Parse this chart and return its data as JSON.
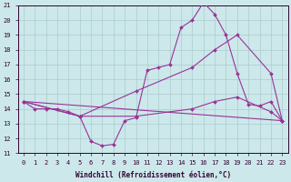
{
  "xlabel": "Windchill (Refroidissement éolien,°C)",
  "bg_color": "#cce8ea",
  "grid_color": "#aacccc",
  "line_color": "#993399",
  "xlim": [
    -0.5,
    23.5
  ],
  "ylim": [
    11,
    21
  ],
  "xticks": [
    0,
    1,
    2,
    3,
    4,
    5,
    6,
    7,
    8,
    9,
    10,
    11,
    12,
    13,
    14,
    15,
    16,
    17,
    18,
    19,
    20,
    21,
    22,
    23
  ],
  "yticks": [
    11,
    12,
    13,
    14,
    15,
    16,
    17,
    18,
    19,
    20,
    21
  ],
  "line1_x": [
    0,
    1,
    2,
    3,
    4,
    5,
    6,
    7,
    8,
    9,
    10,
    11,
    12,
    13,
    14,
    15,
    16,
    17,
    18,
    19,
    20,
    21,
    22,
    23
  ],
  "line1_y": [
    14.5,
    14.0,
    14.0,
    14.0,
    13.8,
    13.5,
    11.8,
    11.5,
    11.6,
    13.2,
    13.4,
    16.6,
    16.8,
    17.0,
    19.5,
    20.0,
    21.2,
    20.4,
    19.0,
    16.4,
    14.3,
    14.2,
    14.5,
    13.2
  ],
  "line2_x": [
    0,
    23
  ],
  "line2_y": [
    14.5,
    13.2
  ],
  "line3_x": [
    0,
    5,
    10,
    15,
    17,
    19,
    22,
    23
  ],
  "line3_y": [
    14.5,
    13.5,
    15.2,
    16.8,
    18.0,
    19.0,
    16.4,
    13.2
  ],
  "line4_x": [
    0,
    5,
    10,
    15,
    17,
    19,
    22,
    23
  ],
  "line4_y": [
    14.5,
    13.5,
    13.5,
    14.0,
    14.5,
    14.8,
    13.8,
    13.2
  ],
  "marker_size": 2,
  "line_width": 0.8,
  "tick_fontsize": 5,
  "xlabel_fontsize": 5.5
}
